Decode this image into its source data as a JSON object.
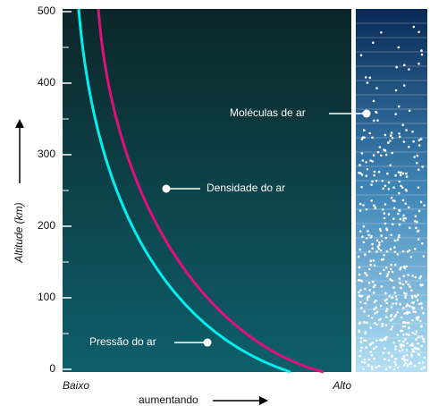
{
  "y_axis": {
    "title": "Altitude (km)",
    "ticks": [
      0,
      100,
      200,
      300,
      400,
      500
    ]
  },
  "x_axis": {
    "low": "Baixo",
    "high": "Alto",
    "direction": "aumentando"
  },
  "labels": {
    "density": "Densidade do ar",
    "pressure": "Pressão do ar",
    "molecules": "Moléculas de ar"
  }
}
